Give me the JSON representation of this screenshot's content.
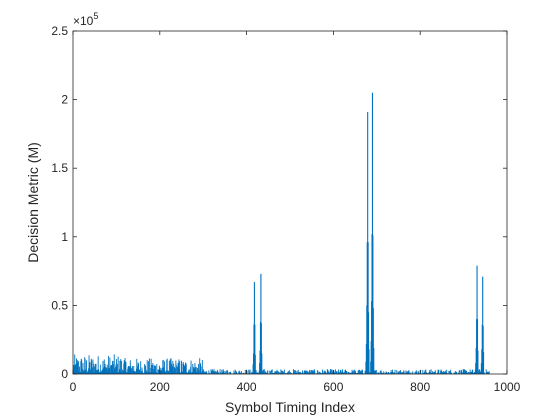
{
  "chart_data": {
    "type": "bar",
    "title": "",
    "xlabel": "Symbol Timing Index",
    "ylabel": "Decision Metric (M)",
    "xlim": [
      0,
      1000
    ],
    "ylim": [
      0,
      250000
    ],
    "xticks": [
      0,
      200,
      400,
      600,
      800,
      1000
    ],
    "xtick_labels": [
      "0",
      "200",
      "400",
      "600",
      "800",
      "1000"
    ],
    "yticks": [
      0,
      50000,
      100000,
      150000,
      200000,
      250000
    ],
    "ytick_labels": [
      "0",
      "0.5",
      "1",
      "1.5",
      "2",
      "2.5"
    ],
    "y_exponent": {
      "base": "×10",
      "power": "5"
    },
    "grid": false,
    "legend": "none",
    "bar_color": "#0072BD",
    "noise_floor": {
      "x_range": [
        1,
        960
      ],
      "segments": [
        {
          "x": [
            1,
            120
          ],
          "peak": 16000
        },
        {
          "x": [
            120,
            300
          ],
          "peak": 13000
        },
        {
          "x": [
            300,
            960
          ],
          "peak": 4000
        }
      ]
    },
    "peaks": [
      {
        "x": 415,
        "y": 7000
      },
      {
        "x": 416,
        "y": 15000
      },
      {
        "x": 417,
        "y": 36000
      },
      {
        "x": 418,
        "y": 67000
      },
      {
        "x": 419,
        "y": 36000
      },
      {
        "x": 420,
        "y": 14000
      },
      {
        "x": 430,
        "y": 8000
      },
      {
        "x": 431,
        "y": 17000
      },
      {
        "x": 432,
        "y": 38000
      },
      {
        "x": 433,
        "y": 73000
      },
      {
        "x": 434,
        "y": 37000
      },
      {
        "x": 435,
        "y": 15000
      },
      {
        "x": 675,
        "y": 9000
      },
      {
        "x": 676,
        "y": 22000
      },
      {
        "x": 677,
        "y": 50000
      },
      {
        "x": 678,
        "y": 96000
      },
      {
        "x": 679,
        "y": 191000
      },
      {
        "x": 680,
        "y": 96000
      },
      {
        "x": 681,
        "y": 45000
      },
      {
        "x": 682,
        "y": 18000
      },
      {
        "x": 686,
        "y": 9000
      },
      {
        "x": 687,
        "y": 24000
      },
      {
        "x": 688,
        "y": 53000
      },
      {
        "x": 689,
        "y": 102000
      },
      {
        "x": 690,
        "y": 205000
      },
      {
        "x": 691,
        "y": 101000
      },
      {
        "x": 692,
        "y": 48000
      },
      {
        "x": 693,
        "y": 19000
      },
      {
        "x": 928,
        "y": 8000
      },
      {
        "x": 929,
        "y": 19000
      },
      {
        "x": 930,
        "y": 40000
      },
      {
        "x": 931,
        "y": 79000
      },
      {
        "x": 932,
        "y": 40000
      },
      {
        "x": 933,
        "y": 17000
      },
      {
        "x": 941,
        "y": 8000
      },
      {
        "x": 942,
        "y": 18000
      },
      {
        "x": 943,
        "y": 36000
      },
      {
        "x": 944,
        "y": 71000
      },
      {
        "x": 945,
        "y": 35000
      },
      {
        "x": 946,
        "y": 16000
      }
    ]
  }
}
